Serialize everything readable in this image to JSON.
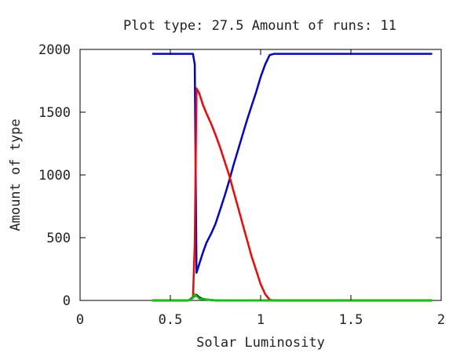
{
  "chart_data": {
    "type": "line",
    "title": "Plot type: 27.5 Amount of runs: 11",
    "xlabel": "Solar Luminosity",
    "ylabel": "Amount of type",
    "xlim": [
      0,
      2
    ],
    "ylim": [
      0,
      2000
    ],
    "xticks": [
      0,
      0.5,
      1,
      1.5,
      2
    ],
    "xtick_labels": [
      "0",
      "0.5",
      "1",
      "1.5",
      "2"
    ],
    "yticks": [
      0,
      500,
      1000,
      1500,
      2000
    ],
    "ytick_labels": [
      "0",
      "500",
      "1000",
      "1500",
      "2000"
    ],
    "grid": false,
    "legend": "none",
    "series": [
      {
        "color": "#0000dd",
        "points": [
          [
            0.4,
            1965
          ],
          [
            0.6,
            1965
          ],
          [
            0.625,
            1965
          ],
          [
            0.635,
            1880
          ],
          [
            0.645,
            220
          ],
          [
            0.66,
            290
          ],
          [
            0.68,
            380
          ],
          [
            0.7,
            460
          ],
          [
            0.725,
            530
          ],
          [
            0.75,
            610
          ],
          [
            0.775,
            720
          ],
          [
            0.8,
            830
          ],
          [
            0.825,
            950
          ],
          [
            0.85,
            1080
          ],
          [
            0.875,
            1200
          ],
          [
            0.9,
            1320
          ],
          [
            0.925,
            1440
          ],
          [
            0.95,
            1550
          ],
          [
            0.975,
            1660
          ],
          [
            1.0,
            1780
          ],
          [
            1.025,
            1880
          ],
          [
            1.05,
            1955
          ],
          [
            1.075,
            1965
          ],
          [
            1.1,
            1965
          ],
          [
            1.5,
            1965
          ],
          [
            1.95,
            1965
          ]
        ]
      },
      {
        "color": "#ff0000",
        "points": [
          [
            0.4,
            0
          ],
          [
            0.6,
            0
          ],
          [
            0.625,
            20
          ],
          [
            0.635,
            450
          ],
          [
            0.645,
            1690
          ],
          [
            0.66,
            1650
          ],
          [
            0.68,
            1560
          ],
          [
            0.7,
            1490
          ],
          [
            0.725,
            1410
          ],
          [
            0.75,
            1320
          ],
          [
            0.775,
            1220
          ],
          [
            0.8,
            1110
          ],
          [
            0.825,
            1000
          ],
          [
            0.85,
            870
          ],
          [
            0.875,
            740
          ],
          [
            0.9,
            610
          ],
          [
            0.925,
            480
          ],
          [
            0.95,
            350
          ],
          [
            0.975,
            240
          ],
          [
            1.0,
            130
          ],
          [
            1.025,
            50
          ],
          [
            1.05,
            5
          ],
          [
            1.075,
            0
          ],
          [
            1.95,
            0
          ]
        ]
      },
      {
        "color": "#000000",
        "points": [
          [
            0.4,
            0
          ],
          [
            0.6,
            0
          ],
          [
            0.625,
            25
          ],
          [
            0.645,
            45
          ],
          [
            0.66,
            25
          ],
          [
            0.68,
            12
          ],
          [
            0.7,
            8
          ],
          [
            0.725,
            3
          ],
          [
            0.75,
            0
          ],
          [
            1.95,
            0
          ]
        ]
      },
      {
        "color": "#00cc00",
        "points": [
          [
            0.4,
            0
          ],
          [
            0.6,
            0
          ],
          [
            0.625,
            20
          ],
          [
            0.635,
            50
          ],
          [
            0.645,
            35
          ],
          [
            0.66,
            15
          ],
          [
            0.68,
            10
          ],
          [
            0.7,
            8
          ],
          [
            0.725,
            4
          ],
          [
            0.75,
            2
          ],
          [
            0.8,
            0
          ],
          [
            1.95,
            0
          ]
        ]
      }
    ]
  }
}
